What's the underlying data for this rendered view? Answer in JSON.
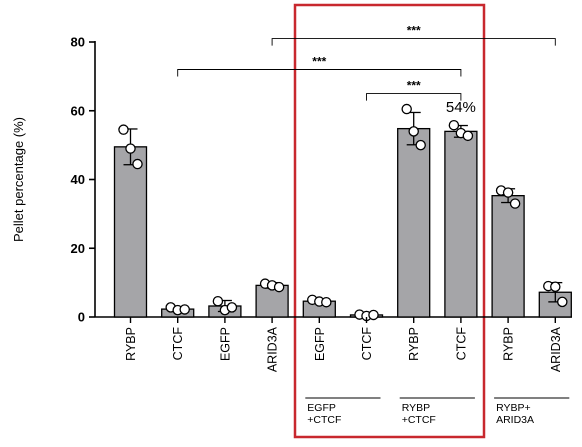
{
  "chart_data": {
    "type": "bar",
    "ylabel": "Pellet percentage (%)",
    "ylim": [
      0,
      80
    ],
    "yticks": [
      0,
      20,
      40,
      60,
      80
    ],
    "categories": [
      "RYBP",
      "CTCF",
      "EGFP",
      "ARID3A",
      "EGFP",
      "CTCF",
      "RYBP",
      "CTCF",
      "RYBP",
      "ARID3A"
    ],
    "values": [
      49.5,
      2.3,
      3.2,
      9.2,
      4.6,
      0.6,
      54.8,
      54.0,
      35.3,
      7.2
    ],
    "errors": [
      5.2,
      0.5,
      1.6,
      0.8,
      0.5,
      0.3,
      4.7,
      1.7,
      2.0,
      2.8
    ],
    "points": [
      [
        54.5,
        49.0,
        44.5
      ],
      [
        2.8,
        2.0,
        2.2
      ],
      [
        4.6,
        2.0,
        2.8
      ],
      [
        9.7,
        9.2,
        8.7
      ],
      [
        5.0,
        4.5,
        4.3
      ],
      [
        0.7,
        0.3,
        0.6
      ],
      [
        60.5,
        54.0,
        50.0
      ],
      [
        55.8,
        53.5,
        52.7
      ],
      [
        36.8,
        36.2,
        33.0
      ],
      [
        9.0,
        8.8,
        4.4
      ]
    ],
    "groups": [
      {
        "label_lines": [
          "EGFP",
          "+CTCF"
        ],
        "from": 4,
        "to": 5
      },
      {
        "label_lines": [
          "RYBP",
          "+CTCF"
        ],
        "from": 6,
        "to": 7
      },
      {
        "label_lines": [
          "RYBP+",
          "ARID3A"
        ],
        "from": 8,
        "to": 9
      }
    ],
    "significance": [
      {
        "from": 3,
        "to": 9,
        "label": "***",
        "y": 81
      },
      {
        "from": 1,
        "to": 7,
        "label": "***",
        "y": 72
      },
      {
        "from": 5,
        "to": 7,
        "label": "***",
        "y": 65
      }
    ],
    "annotations": [
      {
        "index": 7,
        "text": "54%"
      }
    ],
    "bar_color": "#a5a5a8",
    "highlight_color": "#c8282e",
    "highlight_range": [
      4,
      7
    ]
  }
}
